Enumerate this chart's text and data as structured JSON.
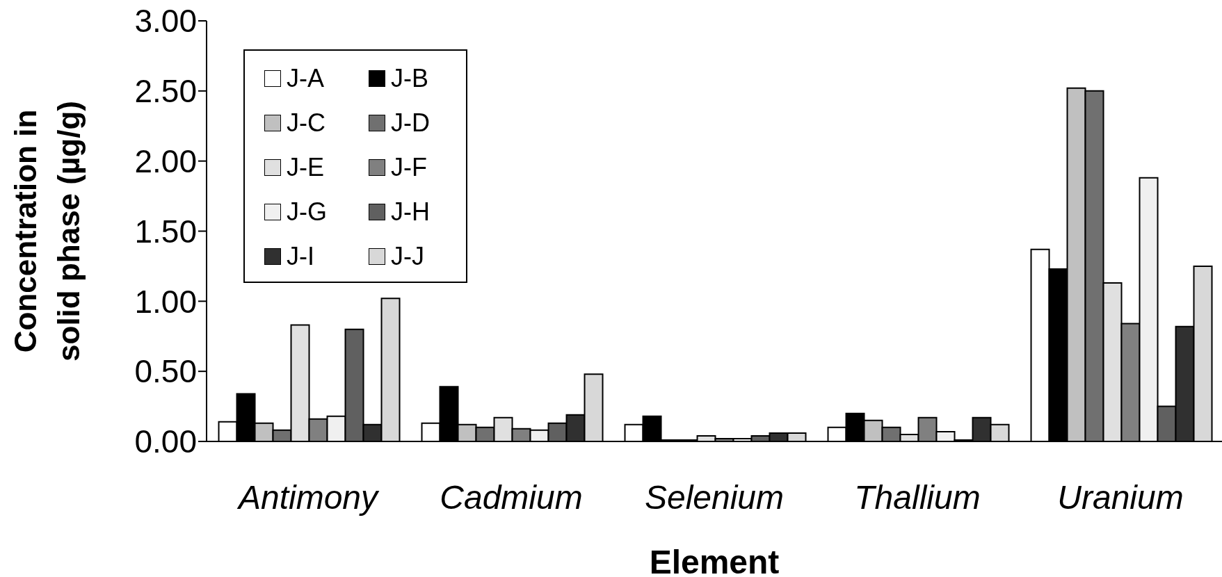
{
  "chart_data": {
    "type": "bar",
    "xlabel": "Element",
    "ylabel": "Concentration in solid phase (µg/g)",
    "categories": [
      "Antimony",
      "Cadmium",
      "Selenium",
      "Thallium",
      "Uranium"
    ],
    "series": [
      {
        "name": "J-A",
        "color": "#ffffff",
        "values": [
          0.14,
          0.13,
          0.12,
          0.1,
          1.37
        ]
      },
      {
        "name": "J-B",
        "color": "#000000",
        "values": [
          0.34,
          0.39,
          0.18,
          0.2,
          1.23
        ]
      },
      {
        "name": "J-C",
        "color": "#c0c0c0",
        "values": [
          0.13,
          0.12,
          0.01,
          0.15,
          2.52
        ]
      },
      {
        "name": "J-D",
        "color": "#707070",
        "values": [
          0.08,
          0.1,
          0.01,
          0.1,
          2.5
        ]
      },
      {
        "name": "J-E",
        "color": "#e0e0e0",
        "values": [
          0.83,
          0.17,
          0.04,
          0.05,
          1.13
        ]
      },
      {
        "name": "J-F",
        "color": "#808080",
        "values": [
          0.16,
          0.09,
          0.02,
          0.17,
          0.84
        ]
      },
      {
        "name": "J-G",
        "color": "#f0f0f0",
        "values": [
          0.18,
          0.08,
          0.02,
          0.07,
          1.88
        ]
      },
      {
        "name": "J-H",
        "color": "#606060",
        "values": [
          0.8,
          0.13,
          0.04,
          0.01,
          0.25
        ]
      },
      {
        "name": "J-I",
        "color": "#303030",
        "values": [
          0.12,
          0.19,
          0.06,
          0.17,
          0.82
        ]
      },
      {
        "name": "J-J",
        "color": "#d8d8d8",
        "values": [
          1.02,
          0.48,
          0.06,
          0.12,
          1.25
        ]
      }
    ],
    "ylim": [
      0,
      3
    ],
    "yticks": [
      {
        "value": 0,
        "label": "0.00"
      },
      {
        "value": 0.5,
        "label": "0.50"
      },
      {
        "value": 1,
        "label": "1.00"
      },
      {
        "value": 1.5,
        "label": "1.50"
      },
      {
        "value": 2,
        "label": "2.00"
      },
      {
        "value": 2.5,
        "label": "2.50"
      },
      {
        "value": 3,
        "label": "3.00"
      }
    ],
    "legend": "top left",
    "grid": false
  }
}
